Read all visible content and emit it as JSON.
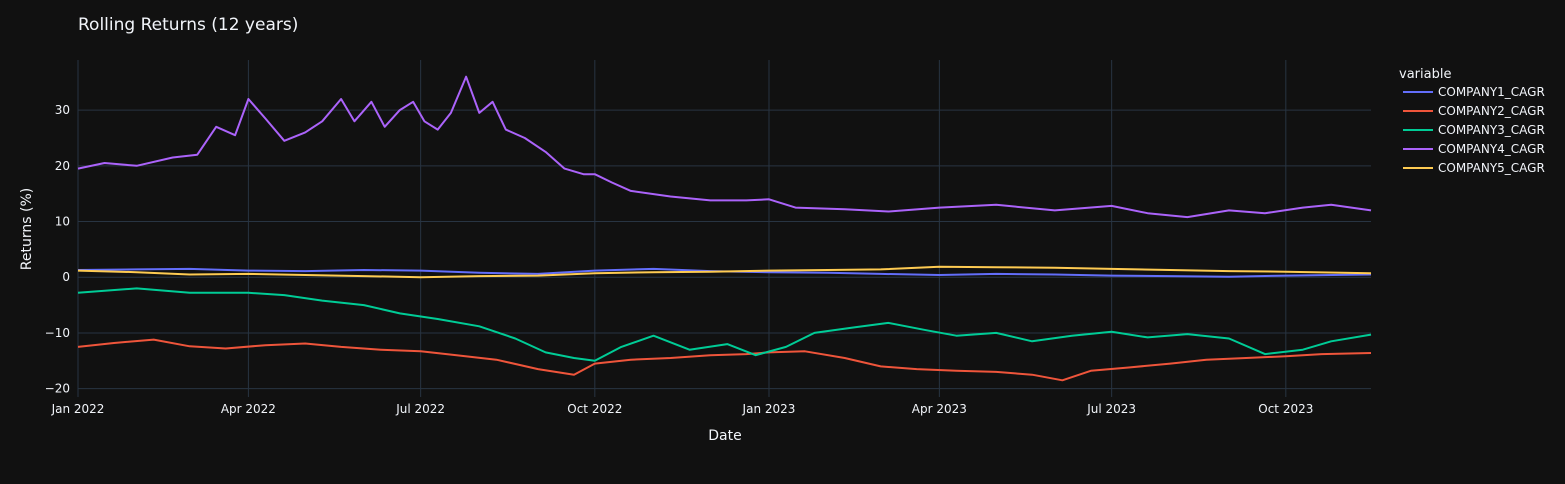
{
  "chart_data": {
    "type": "line",
    "title": "Rolling Returns (12 years)",
    "xlabel": "Date",
    "ylabel": "Returns (%)",
    "x_ticks": [
      "Jan 2022",
      "Apr 2022",
      "Jul 2022",
      "Oct 2022",
      "Jan 2023",
      "Apr 2023",
      "Jul 2023",
      "Oct 2023"
    ],
    "x_tick_dates": [
      "2022-01-01",
      "2022-04-01",
      "2022-07-01",
      "2022-10-01",
      "2023-01-01",
      "2023-04-01",
      "2023-07-01",
      "2023-10-01"
    ],
    "xlim": [
      "2022-01-01",
      "2023-11-15"
    ],
    "y_ticks": [
      -20,
      -10,
      0,
      10,
      20,
      30
    ],
    "ylim": [
      -21.5,
      39
    ],
    "grid": true,
    "legend": {
      "title": "variable",
      "position": "right"
    },
    "series": [
      {
        "name": "COMPANY1_CAGR",
        "color": "#636efa",
        "points": [
          [
            "2022-01-01",
            1.3
          ],
          [
            "2022-02-01",
            1.4
          ],
          [
            "2022-03-01",
            1.5
          ],
          [
            "2022-04-01",
            1.2
          ],
          [
            "2022-05-01",
            1.1
          ],
          [
            "2022-06-01",
            1.3
          ],
          [
            "2022-07-01",
            1.2
          ],
          [
            "2022-08-01",
            0.8
          ],
          [
            "2022-09-01",
            0.6
          ],
          [
            "2022-10-01",
            1.2
          ],
          [
            "2022-11-01",
            1.5
          ],
          [
            "2022-12-01",
            1.1
          ],
          [
            "2023-01-01",
            0.9
          ],
          [
            "2023-02-01",
            0.8
          ],
          [
            "2023-03-01",
            0.6
          ],
          [
            "2023-04-01",
            0.4
          ],
          [
            "2023-05-01",
            0.6
          ],
          [
            "2023-06-01",
            0.5
          ],
          [
            "2023-07-01",
            0.3
          ],
          [
            "2023-08-01",
            0.2
          ],
          [
            "2023-09-01",
            0.1
          ],
          [
            "2023-10-01",
            0.3
          ],
          [
            "2023-11-15",
            0.5
          ]
        ]
      },
      {
        "name": "COMPANY2_CAGR",
        "color": "#ef553b",
        "points": [
          [
            "2022-01-01",
            -12.5
          ],
          [
            "2022-01-20",
            -11.8
          ],
          [
            "2022-02-10",
            -11.2
          ],
          [
            "2022-03-01",
            -12.4
          ],
          [
            "2022-03-20",
            -12.8
          ],
          [
            "2022-04-10",
            -12.2
          ],
          [
            "2022-05-01",
            -11.9
          ],
          [
            "2022-05-20",
            -12.5
          ],
          [
            "2022-06-10",
            -13.0
          ],
          [
            "2022-07-01",
            -13.3
          ],
          [
            "2022-07-20",
            -14.0
          ],
          [
            "2022-08-10",
            -14.8
          ],
          [
            "2022-09-01",
            -16.5
          ],
          [
            "2022-09-20",
            -17.5
          ],
          [
            "2022-10-01",
            -15.5
          ],
          [
            "2022-10-20",
            -14.8
          ],
          [
            "2022-11-10",
            -14.5
          ],
          [
            "2022-12-01",
            -14.0
          ],
          [
            "2022-12-20",
            -13.8
          ],
          [
            "2023-01-01",
            -13.5
          ],
          [
            "2023-01-20",
            -13.3
          ],
          [
            "2023-02-10",
            -14.5
          ],
          [
            "2023-03-01",
            -16.0
          ],
          [
            "2023-03-20",
            -16.5
          ],
          [
            "2023-04-10",
            -16.8
          ],
          [
            "2023-05-01",
            -17.0
          ],
          [
            "2023-05-20",
            -17.5
          ],
          [
            "2023-06-05",
            -18.5
          ],
          [
            "2023-06-20",
            -16.8
          ],
          [
            "2023-07-10",
            -16.2
          ],
          [
            "2023-08-01",
            -15.5
          ],
          [
            "2023-08-20",
            -14.8
          ],
          [
            "2023-09-10",
            -14.5
          ],
          [
            "2023-10-01",
            -14.2
          ],
          [
            "2023-10-20",
            -13.8
          ],
          [
            "2023-11-15",
            -13.6
          ]
        ]
      },
      {
        "name": "COMPANY3_CAGR",
        "color": "#00cc96",
        "points": [
          [
            "2022-01-01",
            -2.8
          ],
          [
            "2022-02-01",
            -2.0
          ],
          [
            "2022-03-01",
            -2.8
          ],
          [
            "2022-04-01",
            -2.8
          ],
          [
            "2022-04-20",
            -3.2
          ],
          [
            "2022-05-10",
            -4.2
          ],
          [
            "2022-06-01",
            -5.0
          ],
          [
            "2022-06-20",
            -6.5
          ],
          [
            "2022-07-10",
            -7.5
          ],
          [
            "2022-08-01",
            -8.8
          ],
          [
            "2022-08-20",
            -11.0
          ],
          [
            "2022-09-05",
            -13.5
          ],
          [
            "2022-09-20",
            -14.5
          ],
          [
            "2022-10-01",
            -15.0
          ],
          [
            "2022-10-15",
            -12.5
          ],
          [
            "2022-11-01",
            -10.5
          ],
          [
            "2022-11-20",
            -13.0
          ],
          [
            "2022-12-10",
            -12.0
          ],
          [
            "2022-12-25",
            -14.0
          ],
          [
            "2023-01-10",
            -12.5
          ],
          [
            "2023-01-25",
            -10.0
          ],
          [
            "2023-02-15",
            -9.0
          ],
          [
            "2023-03-05",
            -8.2
          ],
          [
            "2023-03-25",
            -9.5
          ],
          [
            "2023-04-10",
            -10.5
          ],
          [
            "2023-05-01",
            -10.0
          ],
          [
            "2023-05-20",
            -11.5
          ],
          [
            "2023-06-10",
            -10.5
          ],
          [
            "2023-07-01",
            -9.8
          ],
          [
            "2023-07-20",
            -10.8
          ],
          [
            "2023-08-10",
            -10.2
          ],
          [
            "2023-09-01",
            -11.0
          ],
          [
            "2023-09-20",
            -13.8
          ],
          [
            "2023-10-10",
            -13.0
          ],
          [
            "2023-10-25",
            -11.5
          ],
          [
            "2023-11-15",
            -10.3
          ]
        ]
      },
      {
        "name": "COMPANY4_CAGR",
        "color": "#ab63fa",
        "points": [
          [
            "2022-01-01",
            19.5
          ],
          [
            "2022-01-15",
            20.5
          ],
          [
            "2022-02-01",
            20.0
          ],
          [
            "2022-02-20",
            21.5
          ],
          [
            "2022-03-05",
            22.0
          ],
          [
            "2022-03-15",
            27.0
          ],
          [
            "2022-03-25",
            25.5
          ],
          [
            "2022-04-01",
            32.0
          ],
          [
            "2022-04-10",
            28.5
          ],
          [
            "2022-04-20",
            24.5
          ],
          [
            "2022-05-01",
            26.0
          ],
          [
            "2022-05-10",
            28.0
          ],
          [
            "2022-05-20",
            32.0
          ],
          [
            "2022-05-27",
            28.0
          ],
          [
            "2022-06-05",
            31.5
          ],
          [
            "2022-06-12",
            27.0
          ],
          [
            "2022-06-20",
            30.0
          ],
          [
            "2022-06-27",
            31.5
          ],
          [
            "2022-07-03",
            28.0
          ],
          [
            "2022-07-10",
            26.5
          ],
          [
            "2022-07-17",
            29.5
          ],
          [
            "2022-07-25",
            36.0
          ],
          [
            "2022-08-01",
            29.5
          ],
          [
            "2022-08-08",
            31.5
          ],
          [
            "2022-08-15",
            26.5
          ],
          [
            "2022-08-25",
            25.0
          ],
          [
            "2022-09-05",
            22.5
          ],
          [
            "2022-09-15",
            19.5
          ],
          [
            "2022-09-25",
            18.5
          ],
          [
            "2022-10-01",
            18.5
          ],
          [
            "2022-10-10",
            17.0
          ],
          [
            "2022-10-20",
            15.5
          ],
          [
            "2022-11-10",
            14.5
          ],
          [
            "2022-12-01",
            13.8
          ],
          [
            "2022-12-20",
            13.8
          ],
          [
            "2023-01-01",
            14.0
          ],
          [
            "2023-01-15",
            12.5
          ],
          [
            "2023-02-10",
            12.2
          ],
          [
            "2023-03-05",
            11.8
          ],
          [
            "2023-04-01",
            12.5
          ],
          [
            "2023-05-01",
            13.0
          ],
          [
            "2023-06-01",
            12.0
          ],
          [
            "2023-07-01",
            12.8
          ],
          [
            "2023-07-20",
            11.5
          ],
          [
            "2023-08-10",
            10.8
          ],
          [
            "2023-09-01",
            12.0
          ],
          [
            "2023-09-20",
            11.5
          ],
          [
            "2023-10-10",
            12.5
          ],
          [
            "2023-10-25",
            13.0
          ],
          [
            "2023-11-15",
            12.0
          ]
        ]
      },
      {
        "name": "COMPANY5_CAGR",
        "color": "#fecb52",
        "points": [
          [
            "2022-01-01",
            1.2
          ],
          [
            "2022-02-01",
            0.9
          ],
          [
            "2022-03-01",
            0.5
          ],
          [
            "2022-04-01",
            0.6
          ],
          [
            "2022-05-01",
            0.4
          ],
          [
            "2022-06-01",
            0.2
          ],
          [
            "2022-07-01",
            0.0
          ],
          [
            "2022-08-01",
            0.2
          ],
          [
            "2022-09-01",
            0.3
          ],
          [
            "2022-10-01",
            0.7
          ],
          [
            "2022-11-01",
            0.9
          ],
          [
            "2022-12-01",
            1.0
          ],
          [
            "2023-01-01",
            1.2
          ],
          [
            "2023-02-01",
            1.3
          ],
          [
            "2023-03-01",
            1.4
          ],
          [
            "2023-04-01",
            1.9
          ],
          [
            "2023-05-01",
            1.8
          ],
          [
            "2023-06-01",
            1.7
          ],
          [
            "2023-07-01",
            1.5
          ],
          [
            "2023-08-01",
            1.3
          ],
          [
            "2023-09-01",
            1.1
          ],
          [
            "2023-10-01",
            1.0
          ],
          [
            "2023-11-15",
            0.7
          ]
        ]
      }
    ]
  }
}
